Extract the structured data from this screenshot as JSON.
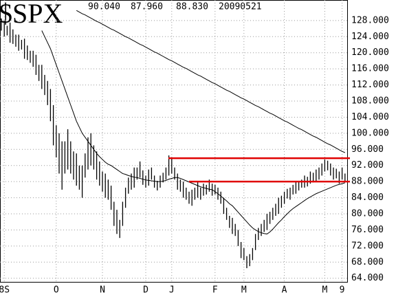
{
  "chart_data": {
    "type": "ohlc",
    "title": "$SPX",
    "header": [
      "90.040",
      "87.960",
      "88.830",
      "20090521"
    ],
    "categories": [
      null,
      "8S",
      null,
      null,
      null,
      null,
      null,
      null,
      null,
      null,
      null,
      null,
      null,
      null,
      null,
      null,
      null,
      null,
      null,
      "O",
      null,
      null,
      null,
      null,
      null,
      null,
      null,
      null,
      null,
      null,
      null,
      null,
      null,
      null,
      null,
      "N",
      null,
      null,
      null,
      null,
      null,
      null,
      null,
      null,
      null,
      null,
      null,
      null,
      null,
      null,
      "D",
      null,
      null,
      null,
      null,
      null,
      null,
      null,
      null,
      "J",
      null,
      null,
      null,
      null,
      null,
      null,
      null,
      null,
      null,
      null,
      null,
      null,
      null,
      null,
      "F",
      null,
      null,
      null,
      null,
      null,
      null,
      null,
      null,
      null,
      "M",
      null,
      null,
      null,
      null,
      null,
      null,
      null,
      null,
      null,
      null,
      null,
      null,
      null,
      "A",
      null,
      null,
      null,
      null,
      null,
      null,
      null,
      null,
      null,
      null,
      null,
      null,
      null,
      "M",
      null,
      null,
      null,
      null,
      null,
      "9",
      null
    ],
    "high": [
      128.5,
      128,
      126.7,
      127.5,
      125.8,
      124.5,
      124.5,
      123.2,
      123.5,
      121.8,
      120.5,
      120.5,
      119.5,
      117,
      117,
      114.5,
      113,
      111,
      107,
      102,
      100,
      98,
      98,
      101,
      98,
      95.5,
      95,
      92,
      92,
      95,
      99,
      100,
      97,
      95.5,
      93,
      90.5,
      90,
      88.5,
      87,
      83,
      81,
      78.5,
      83,
      86.5,
      89,
      90,
      91.5,
      91.5,
      93,
      90.8,
      89.5,
      91,
      91.5,
      89.5,
      88.2,
      89.5,
      90.2,
      91.5,
      94.5,
      94,
      91.5,
      90,
      88.5,
      88,
      86.5,
      85.5,
      86,
      86.5,
      88,
      86.5,
      87.5,
      87.2,
      88.5,
      87.5,
      87.2,
      86.5,
      85.5,
      84,
      81.5,
      79.5,
      79,
      77.5,
      76,
      73,
      71.5,
      69.5,
      70,
      71.5,
      75,
      76.5,
      77.5,
      78.5,
      80,
      80.5,
      81.5,
      82.5,
      84,
      84.5,
      85.5,
      86.2,
      86.5,
      87.2,
      88,
      88.2,
      88.5,
      89.5,
      89.2,
      90.5,
      90.2,
      91,
      91.5,
      92.5,
      93.5,
      93.2,
      92.5,
      91.5,
      91.2,
      90.5,
      91.5,
      90
    ],
    "low": [
      125.5,
      124,
      124.3,
      122.5,
      122.2,
      121.5,
      120.5,
      120.8,
      118.5,
      118.2,
      117.5,
      116.5,
      114.5,
      113,
      111,
      109.5,
      107,
      103,
      97,
      94,
      90,
      86,
      90,
      91,
      90,
      88.5,
      87,
      86,
      84,
      89,
      91,
      92,
      91,
      88.5,
      87,
      85.5,
      84,
      83.5,
      81,
      77,
      75,
      74,
      77,
      81.5,
      85,
      86,
      86.5,
      88.5,
      89,
      87.2,
      86.5,
      87,
      88.5,
      86.5,
      85.8,
      86.5,
      87.8,
      88.5,
      89.5,
      90,
      88.5,
      86,
      85.5,
      84,
      83.5,
      82.5,
      82,
      83.5,
      84,
      83.5,
      84.5,
      84.8,
      85.5,
      84.5,
      84.8,
      83.5,
      82.5,
      80,
      78.5,
      76.5,
      75,
      74.5,
      72,
      69,
      68.5,
      66.5,
      67,
      68.5,
      71,
      73.5,
      74.5,
      75.5,
      76,
      77.5,
      78.5,
      79.5,
      80,
      81.5,
      82.5,
      83.8,
      83.5,
      84.8,
      85,
      85.8,
      86.5,
      86.5,
      86.8,
      87.5,
      87.8,
      88,
      88.5,
      89.5,
      90.5,
      90.8,
      89.5,
      88.5,
      88.8,
      87.5,
      88.5,
      88
    ],
    "color": "#000000",
    "lines": [
      {
        "color": "#000000",
        "values": [
          null,
          null,
          null,
          null,
          null,
          null,
          null,
          null,
          null,
          null,
          null,
          null,
          null,
          null,
          125.5,
          124,
          122.5,
          121,
          119,
          117,
          115,
          113,
          111,
          109,
          107,
          105,
          103,
          101.5,
          100,
          99,
          98,
          97,
          96,
          95,
          94.2,
          93.5,
          92.8,
          92.3,
          92,
          91.5,
          91,
          90.5,
          90,
          89.8,
          89.5,
          89.3,
          89.1,
          89,
          88.8,
          88.6,
          88.4,
          88.3,
          88.2,
          88.1,
          88,
          88,
          88.1,
          88.3,
          88.6,
          88.8,
          89,
          89,
          88.8,
          88.5,
          88.2,
          87.9,
          87.6,
          87.3,
          87,
          86.7,
          86.5,
          86.3,
          86.1,
          86,
          85.5,
          85,
          84.4,
          83.8,
          83.2,
          82.5,
          82,
          81.2,
          80.4,
          79.6,
          78.8,
          78,
          77.2,
          76.5,
          76,
          75.6,
          75.3,
          75.1,
          75,
          75.5,
          76.2,
          77,
          77.8,
          78.5,
          79.3,
          80,
          80.7,
          81.3,
          81.8,
          82.3,
          82.8,
          83.3,
          83.8,
          84.2,
          84.6,
          85,
          85.3,
          85.6,
          85.9,
          86.2,
          86.5,
          86.8,
          87.1,
          87.3,
          87.5,
          87.7
        ]
      },
      {
        "color": "#000000",
        "values": [
          null,
          null,
          null,
          null,
          null,
          null,
          null,
          null,
          null,
          null,
          null,
          null,
          null,
          null,
          null,
          null,
          null,
          null,
          null,
          null,
          null,
          null,
          null,
          null,
          null,
          null,
          130.5,
          130.1,
          129.7,
          129.4,
          129,
          128.6,
          128.2,
          127.8,
          127.5,
          127.1,
          126.7,
          126.3,
          125.9,
          125.6,
          125.2,
          124.8,
          124.4,
          124,
          123.7,
          123.3,
          122.9,
          122.5,
          122.1,
          121.8,
          121.4,
          121,
          120.6,
          120.2,
          119.9,
          119.5,
          119.1,
          118.7,
          118.3,
          118,
          117.6,
          117.2,
          116.8,
          116.4,
          116.1,
          115.7,
          115.3,
          114.9,
          114.5,
          114.2,
          113.8,
          113.4,
          113,
          112.6,
          112.3,
          111.9,
          111.5,
          111.1,
          110.7,
          110.4,
          110,
          109.6,
          109.2,
          108.8,
          108.5,
          108.1,
          107.7,
          107.3,
          106.9,
          106.6,
          106.2,
          105.8,
          105.4,
          105,
          104.7,
          104.3,
          103.9,
          103.5,
          103.1,
          102.8,
          102.4,
          102,
          101.6,
          101.2,
          100.9,
          100.5,
          100.1,
          99.7,
          99.3,
          99,
          98.6,
          98.2,
          97.8,
          97.4,
          97.1,
          96.7,
          96.3,
          95.9,
          95.5,
          95.2
        ]
      }
    ],
    "hlines": [
      {
        "value": 93.8,
        "color": "#e00000"
      },
      {
        "value": 88,
        "color": "#e00000"
      }
    ],
    "ylim": [
      63.1,
      133.1
    ],
    "yticks": [
      {
        "value": 64,
        "label": "64.000"
      },
      {
        "value": 68,
        "label": "68.000"
      },
      {
        "value": 72,
        "label": "72.000"
      },
      {
        "value": 76,
        "label": "76.000"
      },
      {
        "value": 80,
        "label": "80.000"
      },
      {
        "value": 84,
        "label": "84.000"
      },
      {
        "value": 88,
        "label": "88.000"
      },
      {
        "value": 92,
        "label": "92.000"
      },
      {
        "value": 96,
        "label": "96.000"
      },
      {
        "value": 100,
        "label": "100.000"
      },
      {
        "value": 104,
        "label": "104.000"
      },
      {
        "value": 108,
        "label": "108.000"
      },
      {
        "value": 112,
        "label": "112.000"
      },
      {
        "value": 116,
        "label": "116.000"
      },
      {
        "value": 120,
        "label": "120.000"
      },
      {
        "value": 124,
        "label": "124.000"
      },
      {
        "value": 128,
        "label": "128.000"
      }
    ],
    "grid": true
  }
}
